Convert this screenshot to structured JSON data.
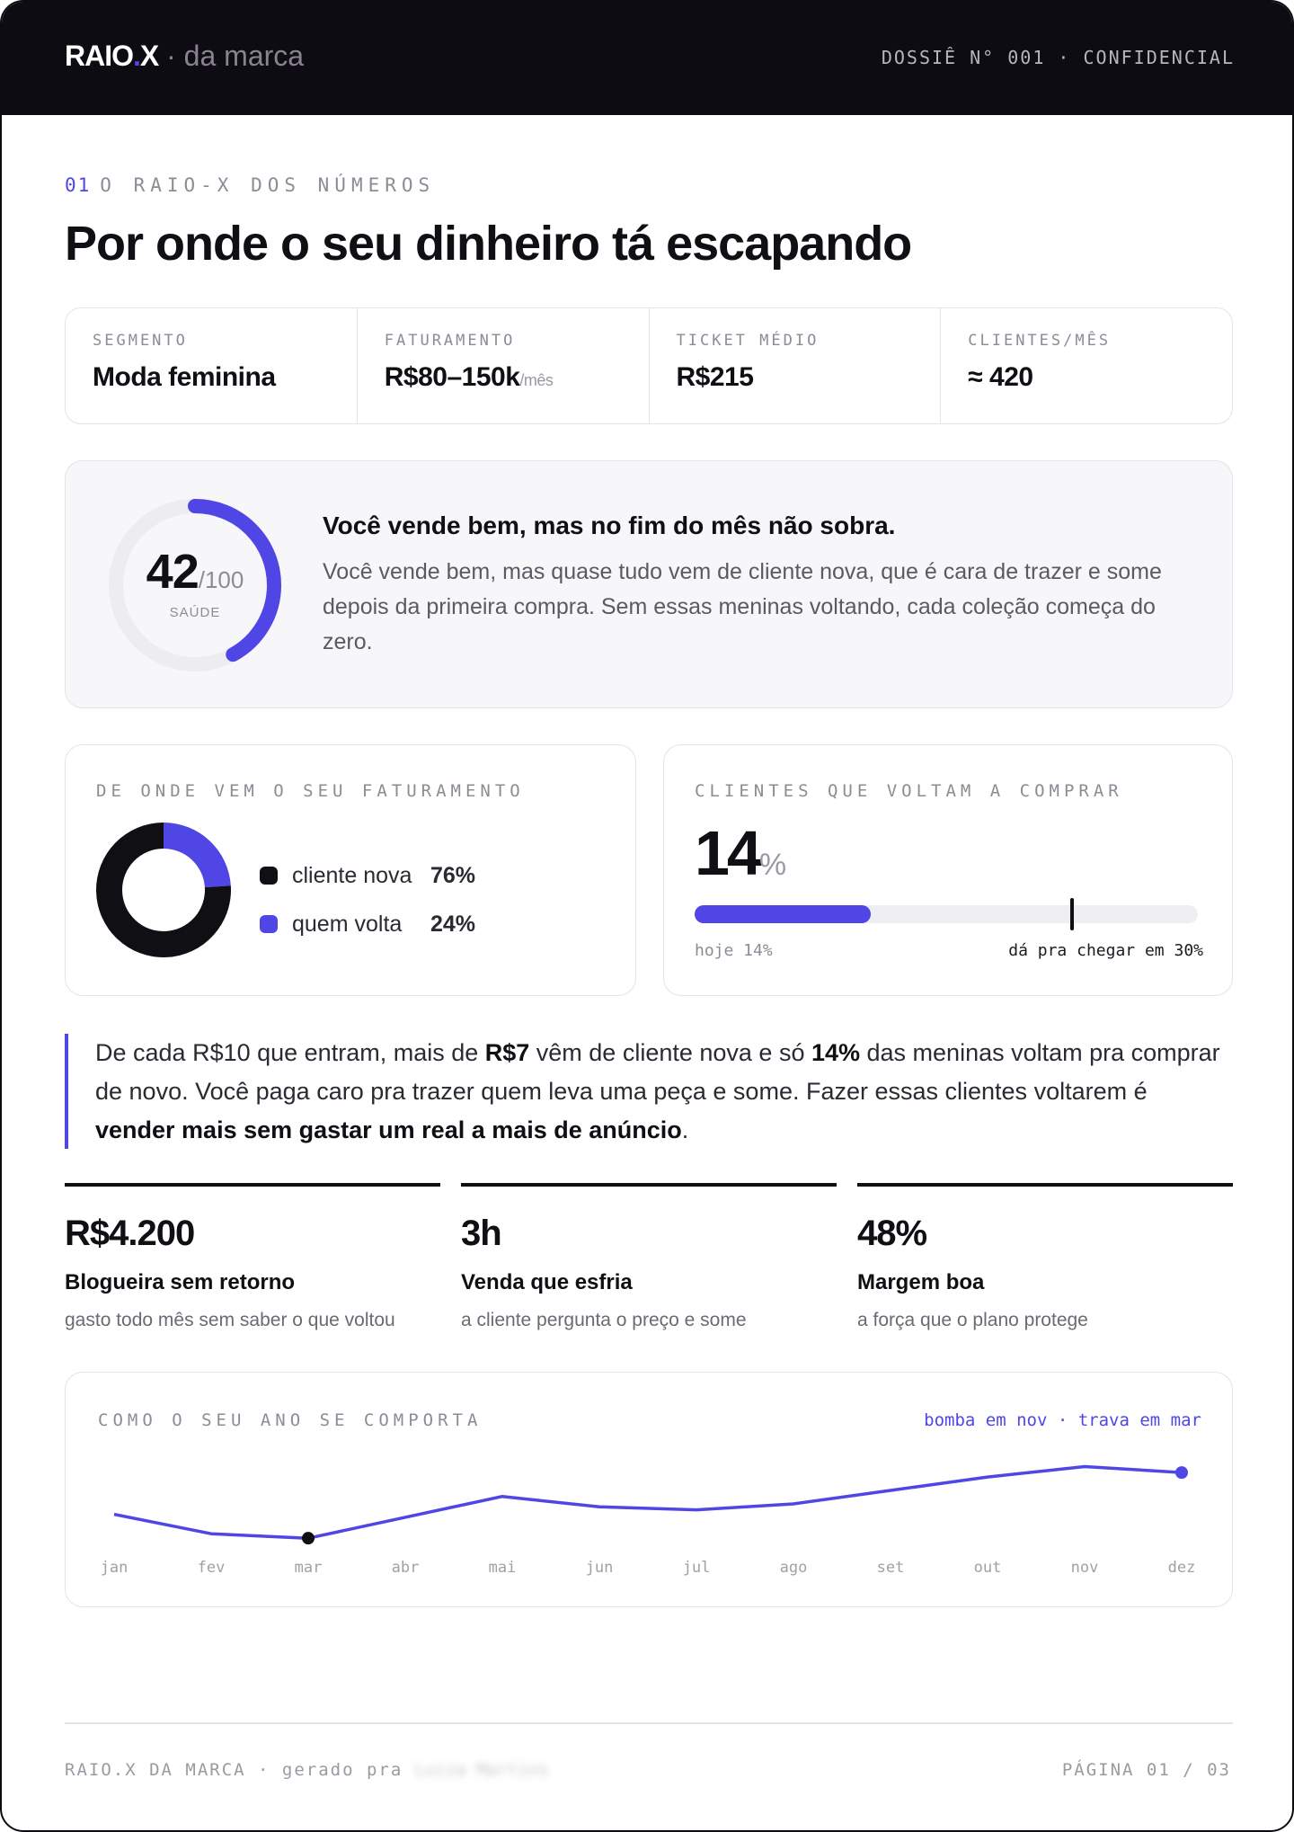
{
  "header": {
    "brand": "RAIO",
    "brand_dot": ".",
    "brand_x": "X",
    "brand_sub": " · da marca",
    "dossie": "DOSSIÊ N° 001 · CONFIDENCIAL"
  },
  "section": {
    "number": "01",
    "label": "O RAIO-X DOS NÚMEROS",
    "title": "Por onde o seu dinheiro tá escapando"
  },
  "stats": [
    {
      "key": "SEGMENTO",
      "value": "Moda feminina",
      "unit": ""
    },
    {
      "key": "FATURAMENTO",
      "value": "R$80–150k",
      "unit": "/mês"
    },
    {
      "key": "TICKET MÉDIO",
      "value": "R$215",
      "unit": ""
    },
    {
      "key": "CLIENTES/MÊS",
      "value": "≈ 420",
      "unit": ""
    }
  ],
  "health": {
    "score": 42,
    "score_text": "42",
    "max_text": "/100",
    "caption": "SAÚDE",
    "headline": "Você vende bem, mas no fim do mês não sobra.",
    "body": "Você vende bem, mas quase tudo vem de cliente nova, que é cara de trazer e some depois da primeira compra. Sem essas meninas voltando, cada coleção começa do zero."
  },
  "revenue_source": {
    "label": "DE ONDE VEM O SEU FATURAMENTO",
    "items": [
      {
        "name": "cliente nova",
        "percent_text": "76%",
        "value": 76,
        "color": "#0f0f14"
      },
      {
        "name": "quem volta",
        "percent_text": "24%",
        "value": 24,
        "color": "#4f46e5"
      }
    ]
  },
  "return_rate": {
    "label": "CLIENTES QUE VOLTAM A COMPRAR",
    "value_text": "14",
    "percent_sign": "%",
    "current": 14,
    "target": 30,
    "today_label": "hoje 14%",
    "target_label": "dá pra chegar em 30%"
  },
  "quote": {
    "p1": "De cada R$10 que entram, mais de ",
    "b1": "R$7",
    "p2": " vêm de cliente nova e só ",
    "b2": "14%",
    "p3": " das meninas voltam pra comprar de novo. Você paga caro pra trazer quem leva uma peça e some. Fazer essas clientes voltarem é ",
    "b3": "vender mais sem gastar um real a mais de anúncio",
    "p4": "."
  },
  "metrics": [
    {
      "value": "R$4.200",
      "title": "Blogueira sem retorno",
      "subtitle": "gasto todo mês sem saber o que voltou"
    },
    {
      "value": "3h",
      "title": "Venda que esfria",
      "subtitle": "a cliente pergunta o preço e some"
    },
    {
      "value": "48%",
      "title": "Margem boa",
      "subtitle": "a força que o plano protege"
    }
  ],
  "year_chart": {
    "label": "COMO O SEU ANO SE COMPORTA",
    "note": "bomba em nov · trava em mar"
  },
  "chart_data": {
    "type": "line",
    "title": "",
    "categories": [
      "jan",
      "fev",
      "mar",
      "abr",
      "mai",
      "jun",
      "jul",
      "ago",
      "set",
      "out",
      "nov",
      "dez"
    ],
    "values": [
      40,
      27,
      24,
      38,
      52,
      45,
      43,
      47,
      56,
      65,
      72,
      68
    ],
    "ylim": [
      0,
      100
    ],
    "grid": false,
    "line_color": "#4f46e5",
    "low_marker_color": "#0f0f14"
  },
  "footer": {
    "left": "RAIO.X DA MARCA · gerado pra ",
    "recipient": "Luiza Martins",
    "right": "PÁGINA 01 / 03"
  }
}
